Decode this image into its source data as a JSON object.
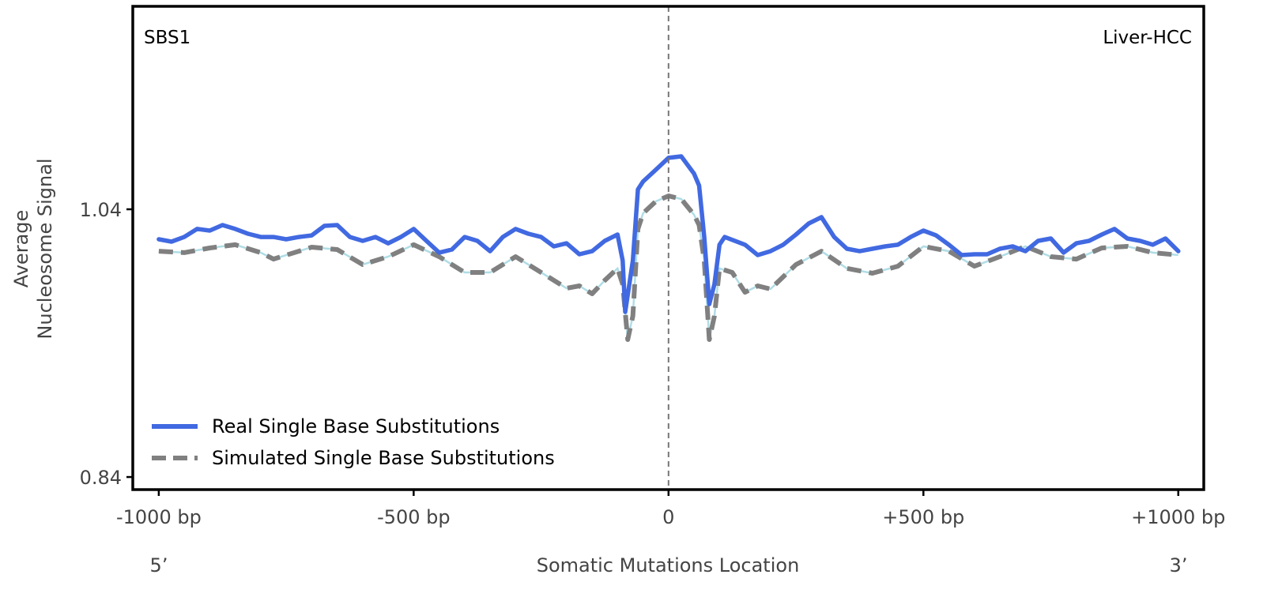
{
  "chart_data": {
    "type": "line",
    "title_left": "SBS1",
    "title_right": "Liver-HCC",
    "xlabel": "Somatic Mutations Location",
    "ylabel_lines": [
      "Average",
      "Nucleosome Signal"
    ],
    "x_end_labels": {
      "left": "5’",
      "right": "3’"
    },
    "xlim": [
      -1051,
      1050
    ],
    "ylim": [
      0.8306,
      1.1916
    ],
    "xticks": [
      {
        "value": -1000,
        "label": "-1000 bp"
      },
      {
        "value": -500,
        "label": "-500 bp"
      },
      {
        "value": 0,
        "label": "0"
      },
      {
        "value": 500,
        "label": "+500 bp"
      },
      {
        "value": 1000,
        "label": "+1000 bp"
      }
    ],
    "yticks": [
      {
        "value": 1.04,
        "label": "1.04"
      },
      {
        "value": 0.84,
        "label": "0.84"
      }
    ],
    "vline_x": 0,
    "legend_position": "bottom-left",
    "series": [
      {
        "name": "Real Single Base Substitutions",
        "color": "#4169e1",
        "style": "solid",
        "x": [
          -1000,
          -975,
          -950,
          -925,
          -900,
          -875,
          -850,
          -825,
          -800,
          -775,
          -750,
          -725,
          -700,
          -675,
          -650,
          -625,
          -600,
          -575,
          -550,
          -525,
          -500,
          -475,
          -450,
          -425,
          -400,
          -375,
          -350,
          -325,
          -300,
          -275,
          -250,
          -225,
          -200,
          -175,
          -150,
          -125,
          -100,
          -90,
          -85,
          -70,
          -60,
          -50,
          -25,
          0,
          25,
          50,
          60,
          70,
          80,
          90,
          100,
          110,
          150,
          175,
          200,
          225,
          250,
          275,
          300,
          325,
          350,
          375,
          400,
          425,
          450,
          475,
          500,
          525,
          550,
          575,
          600,
          625,
          650,
          675,
          700,
          725,
          750,
          775,
          800,
          825,
          850,
          875,
          900,
          925,
          950,
          975,
          1000
        ],
        "y": [
          1.0176,
          1.0158,
          1.0193,
          1.0253,
          1.0241,
          1.0282,
          1.0253,
          1.0217,
          1.0193,
          1.0193,
          1.0176,
          1.0193,
          1.0205,
          1.0276,
          1.0282,
          1.0193,
          1.0164,
          1.0193,
          1.0146,
          1.0193,
          1.0253,
          1.0164,
          1.0076,
          1.0099,
          1.0193,
          1.0164,
          1.0087,
          1.0193,
          1.0253,
          1.0217,
          1.0193,
          1.0123,
          1.0146,
          1.0064,
          1.0087,
          1.0164,
          1.0211,
          1.0017,
          0.9633,
          1.0017,
          1.0548,
          1.0607,
          1.0695,
          1.0784,
          1.0795,
          1.0666,
          1.0577,
          1.0193,
          0.9692,
          0.984,
          1.0135,
          1.0193,
          1.0135,
          1.0058,
          1.0087,
          1.0135,
          1.0211,
          1.0294,
          1.0341,
          1.0193,
          1.0105,
          1.0087,
          1.0105,
          1.0123,
          1.0135,
          1.0193,
          1.0241,
          1.0205,
          1.0135,
          1.0058,
          1.0064,
          1.0064,
          1.0105,
          1.0123,
          1.0087,
          1.0164,
          1.0182,
          1.0076,
          1.0146,
          1.0164,
          1.0211,
          1.0253,
          1.0182,
          1.0164,
          1.0135,
          1.0182,
          1.0087
        ]
      },
      {
        "name": "Simulated Single Base Substitutions",
        "color": "#808080",
        "underline_color": "#b0dde6",
        "style": "dashed",
        "x": [
          -1000,
          -950,
          -900,
          -850,
          -800,
          -775,
          -700,
          -650,
          -600,
          -550,
          -500,
          -450,
          -400,
          -350,
          -300,
          -250,
          -200,
          -175,
          -150,
          -125,
          -100,
          -90,
          -80,
          -70,
          -60,
          -50,
          -25,
          0,
          25,
          50,
          60,
          70,
          80,
          90,
          100,
          125,
          150,
          175,
          200,
          250,
          300,
          350,
          400,
          450,
          500,
          550,
          600,
          650,
          700,
          750,
          800,
          850,
          900,
          950,
          1000
        ],
        "y": [
          1.0087,
          1.0076,
          1.0111,
          1.0135,
          1.0076,
          1.0028,
          1.0117,
          1.0099,
          0.9987,
          1.0046,
          1.0135,
          1.0046,
          0.9928,
          0.9928,
          1.0046,
          0.9928,
          0.981,
          0.9828,
          0.9769,
          0.9869,
          0.9958,
          0.984,
          0.9427,
          0.9604,
          1.0253,
          1.037,
          1.0459,
          1.05,
          1.0477,
          1.0359,
          1.0282,
          1.0017,
          0.9427,
          0.9604,
          0.9958,
          0.9928,
          0.978,
          0.9828,
          0.9804,
          0.9987,
          1.0087,
          0.9958,
          0.9922,
          0.9975,
          1.0123,
          1.0087,
          0.9975,
          1.0046,
          1.0123,
          1.0046,
          1.0028,
          1.0111,
          1.0123,
          1.0076,
          1.0058
        ]
      }
    ]
  }
}
